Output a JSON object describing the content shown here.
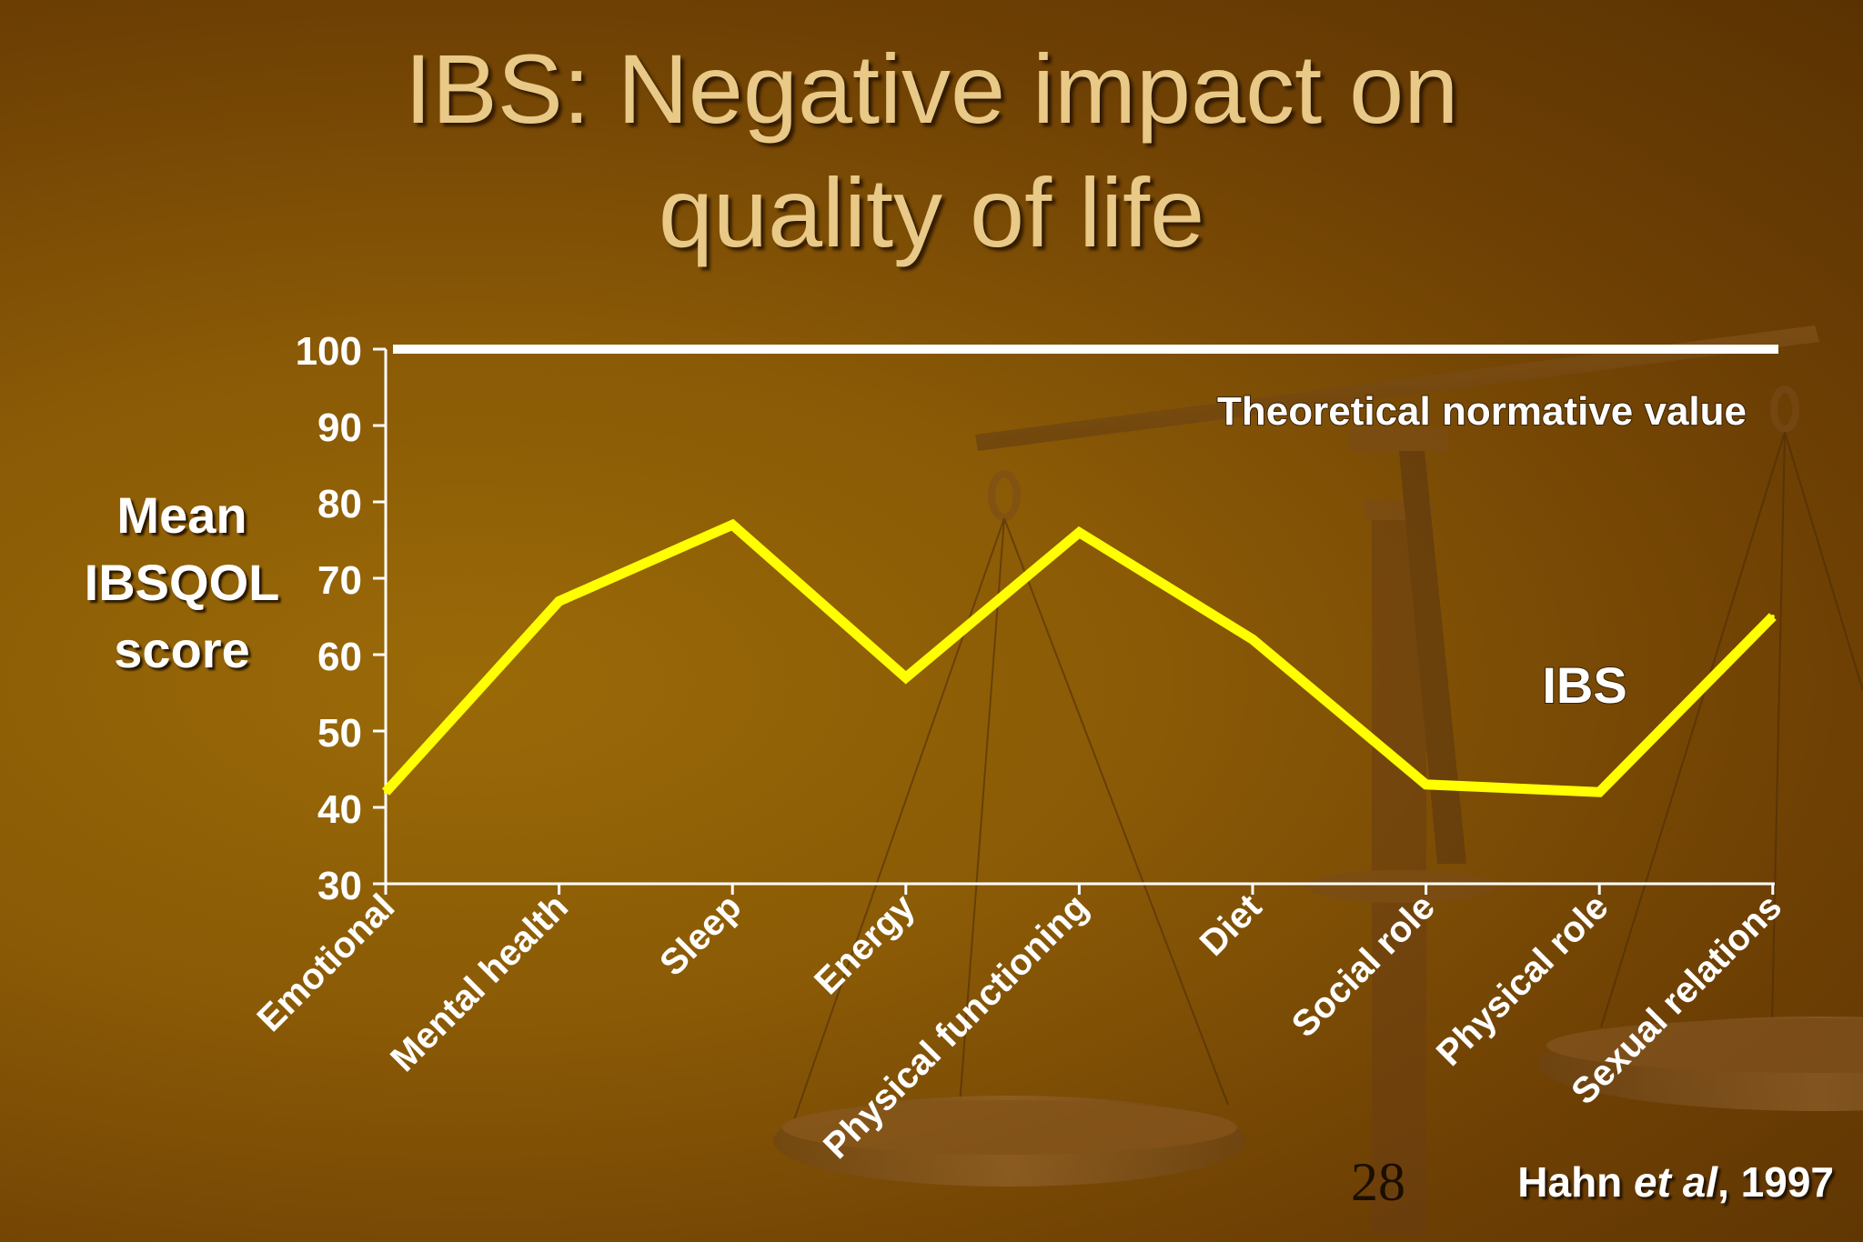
{
  "title_line1": "IBS: Negative impact on",
  "title_line2": "quality of life",
  "ylabel_lines": [
    "Mean",
    "IBSQOL",
    "score"
  ],
  "page_number": "28",
  "citation": {
    "author": "Hahn",
    "et_al": "et al",
    "year": ", 1997"
  },
  "colors": {
    "ibs_line": "#ffff00",
    "normative_line": "#ffffff",
    "axis": "#ffffff",
    "text": "#ffffff",
    "title": "#e8c987"
  },
  "chart_data": {
    "type": "line",
    "categories": [
      "Emotional",
      "Mental health",
      "Sleep",
      "Energy",
      "Physical functioning",
      "Diet",
      "Social role",
      "Physical role",
      "Sexual relations"
    ],
    "series": [
      {
        "name": "IBS",
        "values": [
          42,
          67,
          77,
          57,
          76,
          62,
          43,
          42,
          65
        ]
      },
      {
        "name": "Theoretical normative value",
        "values": [
          100,
          100,
          100,
          100,
          100,
          100,
          100,
          100,
          100
        ]
      }
    ],
    "yticks": [
      30,
      40,
      50,
      60,
      70,
      80,
      90,
      100
    ],
    "ylim": [
      30,
      100
    ],
    "ylabel": "Mean IBSQOL score",
    "xlabel": "",
    "grid": false
  }
}
